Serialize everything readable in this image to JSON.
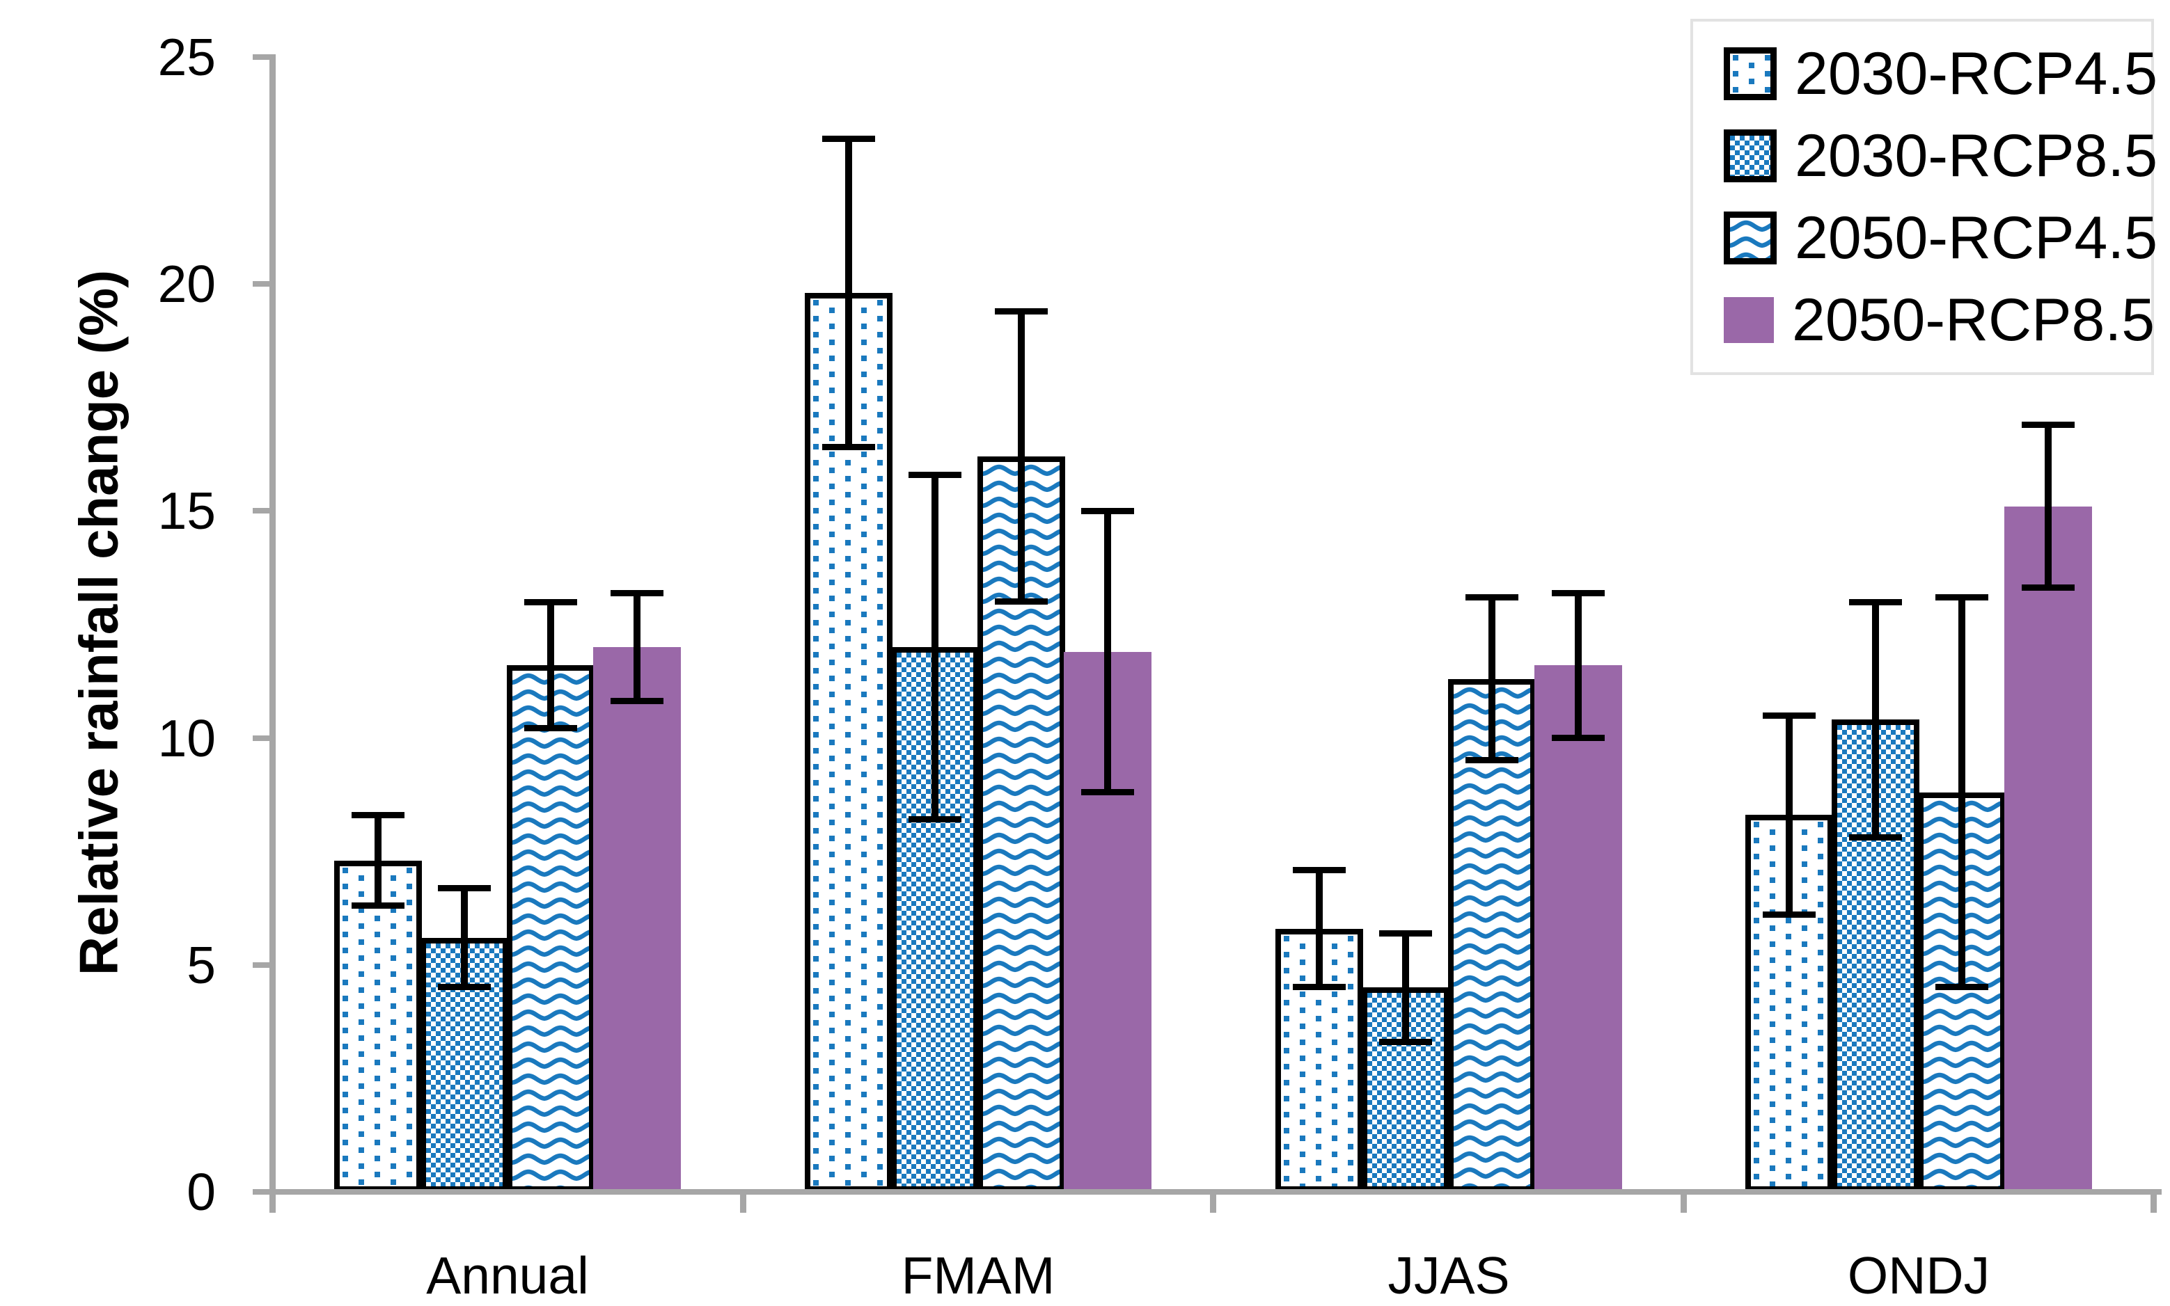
{
  "chart_data": {
    "type": "bar",
    "title": "",
    "xlabel": "",
    "ylabel": "Relative rainfall change (%)",
    "ylim": [
      0,
      25
    ],
    "yticks": [
      0,
      5,
      10,
      15,
      20,
      25
    ],
    "grid": false,
    "legend_position": "top-right",
    "error_bars": true,
    "categories": [
      "Annual",
      "FMAM",
      "JJAS",
      "ONDJ"
    ],
    "series": [
      {
        "name": "2030-RCP4.5",
        "pattern": "dots",
        "values": [
          7.3,
          19.8,
          5.8,
          8.3
        ],
        "errors": [
          1.0,
          3.4,
          1.3,
          2.2
        ]
      },
      {
        "name": "2030-RCP8.5",
        "pattern": "checker",
        "values": [
          5.6,
          12.0,
          4.5,
          10.4
        ],
        "errors": [
          1.1,
          3.8,
          1.2,
          2.6
        ]
      },
      {
        "name": "2050-RCP4.5",
        "pattern": "waves",
        "values": [
          11.6,
          16.2,
          11.3,
          8.8
        ],
        "errors": [
          1.4,
          3.2,
          1.8,
          4.3
        ]
      },
      {
        "name": "2050-RCP8.5",
        "pattern": "solid",
        "values": [
          12.0,
          11.9,
          11.6,
          15.1
        ],
        "errors": [
          1.2,
          3.1,
          1.6,
          1.8
        ]
      }
    ],
    "colors": {
      "pattern_blue": "#1A79BE",
      "solid_purple": "#9A68A8",
      "axis_gray": "#A6A6A6",
      "error_bar": "#000000",
      "text": "#000000",
      "legend_border": "#E2E2E2",
      "background": "#FFFFFF"
    }
  }
}
